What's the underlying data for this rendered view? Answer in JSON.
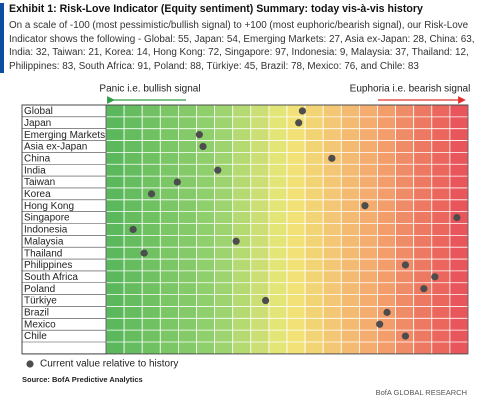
{
  "chart_data": {
    "type": "dot",
    "title": "Exhibit 1: Risk-Love Indicator (Equity sentiment) Summary: today vis-à-vis history",
    "subtitle": "On a scale of -100 (most pessimistic/bullish signal) to +100 (most euphoric/bearish signal), our Risk-Love Indicator shows the following - Global: 55, Japan: 54, Emerging Markets: 27, Asia ex-Japan: 28, China: 63, India: 32, Taiwan: 21, Korea: 14, Hong Kong: 72, Singapore: 97, Indonesia: 9, Malaysia: 37, Thailand: 12, Philippines: 83, South Africa: 91, Poland: 88, Türkiye: 45, Brazil: 78, Mexico: 76, and Chile: 83",
    "left_annotation": "Panic i.e. bullish signal",
    "right_annotation": "Euphoria i.e. bearish signal",
    "categories": [
      "Global",
      "Japan",
      "Emerging Markets",
      "Asia ex-Japan",
      "China",
      "India",
      "Taiwan",
      "Korea",
      "Hong Kong",
      "Singapore",
      "Indonesia",
      "Malaysia",
      "Thailand",
      "Philippines",
      "South Africa",
      "Poland",
      "Türkiye",
      "Brazil",
      "Mexico",
      "Chile"
    ],
    "values": [
      55,
      54,
      27,
      28,
      63,
      32,
      21,
      14,
      72,
      97,
      9,
      37,
      12,
      83,
      91,
      88,
      45,
      78,
      76,
      83
    ],
    "xlim": [
      0,
      100
    ],
    "color": "#4d4d4d",
    "legend": "Current value relative to history",
    "source": "Source: BofA Predictive Analytics",
    "footer": "BofA GLOBAL RESEARCH"
  }
}
